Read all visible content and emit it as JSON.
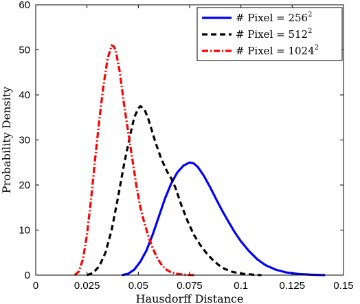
{
  "chart_data": {
    "type": "line",
    "title": "",
    "xlabel": "Hausdorff Distance",
    "ylabel": "Probability Density",
    "xlim": [
      0,
      0.15
    ],
    "ylim": [
      0,
      60
    ],
    "xticks": [
      "0",
      "0.025",
      "0.05",
      "0.075",
      "0.1",
      "0.125",
      "0.15"
    ],
    "yticks": [
      "0",
      "10",
      "20",
      "30",
      "40",
      "50",
      "60"
    ],
    "grid": false,
    "legend_position": "top-right",
    "series": [
      {
        "name": "# Pixel = 256",
        "name_superscript": "2",
        "color": "#0000ff",
        "dash": "solid",
        "points": [
          [
            0.042,
            0
          ],
          [
            0.045,
            0.3
          ],
          [
            0.048,
            1.2
          ],
          [
            0.051,
            3
          ],
          [
            0.054,
            5.5
          ],
          [
            0.057,
            9
          ],
          [
            0.06,
            13
          ],
          [
            0.063,
            17
          ],
          [
            0.066,
            20.3
          ],
          [
            0.069,
            22.8
          ],
          [
            0.072,
            24.3
          ],
          [
            0.075,
            25
          ],
          [
            0.077,
            24.8
          ],
          [
            0.079,
            24
          ],
          [
            0.082,
            22
          ],
          [
            0.085,
            19.5
          ],
          [
            0.088,
            16.8
          ],
          [
            0.091,
            14.2
          ],
          [
            0.094,
            11.8
          ],
          [
            0.097,
            9.5
          ],
          [
            0.1,
            7.5
          ],
          [
            0.104,
            5.3
          ],
          [
            0.108,
            3.5
          ],
          [
            0.112,
            2.2
          ],
          [
            0.117,
            1.2
          ],
          [
            0.122,
            0.6
          ],
          [
            0.128,
            0.25
          ],
          [
            0.134,
            0.1
          ],
          [
            0.141,
            0
          ]
        ]
      },
      {
        "name": "# Pixel = 512",
        "name_superscript": "2",
        "color": "#000000",
        "dash": "dashed",
        "points": [
          [
            0.025,
            0
          ],
          [
            0.028,
            0.5
          ],
          [
            0.031,
            2
          ],
          [
            0.034,
            5
          ],
          [
            0.037,
            10
          ],
          [
            0.04,
            17
          ],
          [
            0.043,
            24.5
          ],
          [
            0.046,
            31
          ],
          [
            0.048,
            35
          ],
          [
            0.05,
            37
          ],
          [
            0.051,
            37.5
          ],
          [
            0.053,
            36.8
          ],
          [
            0.055,
            34.5
          ],
          [
            0.058,
            30
          ],
          [
            0.061,
            26
          ],
          [
            0.064,
            23
          ],
          [
            0.066,
            21.5
          ],
          [
            0.068,
            19.5
          ],
          [
            0.071,
            15.5
          ],
          [
            0.074,
            12
          ],
          [
            0.077,
            9
          ],
          [
            0.08,
            6.8
          ],
          [
            0.083,
            5
          ],
          [
            0.086,
            3.5
          ],
          [
            0.089,
            2.3
          ],
          [
            0.092,
            1.4
          ],
          [
            0.096,
            0.7
          ],
          [
            0.101,
            0.3
          ],
          [
            0.106,
            0.1
          ],
          [
            0.11,
            0
          ]
        ]
      },
      {
        "name": "# Pixel = 1024",
        "name_superscript": "2",
        "color": "#ff0000",
        "dash": "dashdot",
        "points": [
          [
            0.019,
            0
          ],
          [
            0.021,
            0.8
          ],
          [
            0.023,
            3.5
          ],
          [
            0.025,
            9
          ],
          [
            0.027,
            17
          ],
          [
            0.029,
            26
          ],
          [
            0.031,
            34.5
          ],
          [
            0.033,
            42
          ],
          [
            0.035,
            48
          ],
          [
            0.037,
            51
          ],
          [
            0.038,
            50.8
          ],
          [
            0.039,
            49.8
          ],
          [
            0.041,
            45
          ],
          [
            0.043,
            38
          ],
          [
            0.045,
            32
          ],
          [
            0.047,
            26
          ],
          [
            0.049,
            20
          ],
          [
            0.051,
            15
          ],
          [
            0.053,
            11.5
          ],
          [
            0.055,
            8.5
          ],
          [
            0.057,
            6
          ],
          [
            0.059,
            4
          ],
          [
            0.061,
            2.5
          ],
          [
            0.063,
            1.4
          ],
          [
            0.066,
            0.6
          ],
          [
            0.07,
            0.2
          ],
          [
            0.075,
            0.03
          ],
          [
            0.078,
            0
          ]
        ]
      }
    ]
  }
}
